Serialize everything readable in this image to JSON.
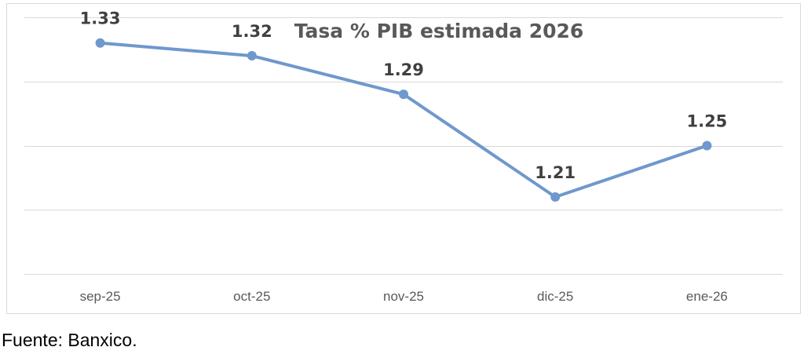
{
  "chart_data": {
    "type": "line",
    "title": "Tasa % PIB estimada 2026",
    "categories": [
      "sep-25",
      "oct-25",
      "nov-25",
      "dic-25",
      "ene-26"
    ],
    "series": [
      {
        "values": [
          1.33,
          1.32,
          1.29,
          1.21,
          1.25
        ],
        "color": "#6f98cc"
      }
    ],
    "data_labels": [
      "1.33",
      "1.32",
      "1.29",
      "1.21",
      "1.25"
    ],
    "ylim": [
      1.15,
      1.35
    ],
    "y_gridlines": [
      1.15,
      1.2,
      1.25,
      1.3,
      1.35
    ],
    "grid": true,
    "y_tick_labels_shown": false,
    "gridline_color": "#d9d9d9"
  },
  "source": "Fuente: Banxico."
}
